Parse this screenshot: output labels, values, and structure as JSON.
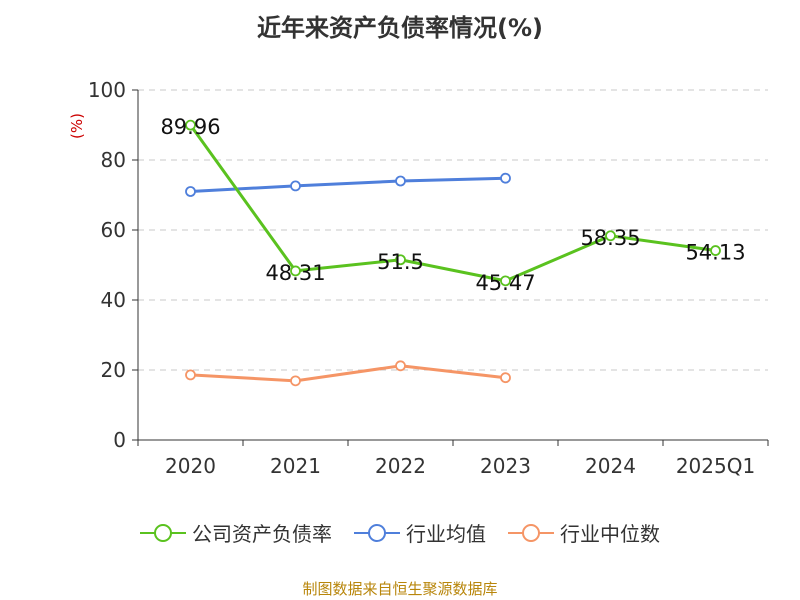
{
  "title": "近年来资产负债率情况(%)",
  "source": "制图数据来自恒生聚源数据库",
  "chart_data": {
    "type": "line",
    "title": "近年来资产负债率情况(%)",
    "ylabel": "(%)",
    "ylim": [
      0,
      100
    ],
    "yticks": [
      "0",
      "20",
      "40",
      "60",
      "80",
      "100"
    ],
    "categories": [
      "2020",
      "2021",
      "2022",
      "2023",
      "2024",
      "2025Q1"
    ],
    "grid": true,
    "legend_position": "bottom",
    "series": [
      {
        "name": "公司资产负债率",
        "color": "#5ac21f",
        "values": [
          89.96,
          48.31,
          51.5,
          45.47,
          58.35,
          54.13
        ],
        "labels": [
          "89.96",
          "48.31",
          "51.5",
          "45.47",
          "58.35",
          "54.13"
        ]
      },
      {
        "name": "行业均值",
        "color": "#4f7fdb",
        "values": [
          71.0,
          72.6,
          74.0,
          74.8,
          null,
          null
        ]
      },
      {
        "name": "行业中位数",
        "color": "#f59566",
        "values": [
          18.6,
          16.9,
          21.2,
          17.8,
          null,
          null
        ]
      }
    ]
  }
}
